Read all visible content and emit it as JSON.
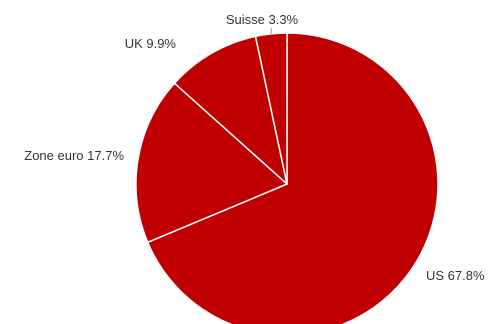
{
  "chart_data": {
    "type": "pie",
    "slices": [
      {
        "label": "US 67.8%",
        "category": "US",
        "value": 67.8
      },
      {
        "label": "Zone euro 17.7%",
        "category": "Zone euro",
        "value": 17.7
      },
      {
        "label": "UK 9.9%",
        "category": "UK",
        "value": 9.9
      },
      {
        "label": "Suisse 3.3%",
        "category": "Suisse",
        "value": 3.3
      }
    ],
    "start": "12 o'clock",
    "direction": "clockwise",
    "legend": "none",
    "colors": {
      "slice_fill": "#c00000",
      "slice_border": "#ffffff",
      "leader_line": "#999999",
      "label_text": "#333333"
    }
  }
}
